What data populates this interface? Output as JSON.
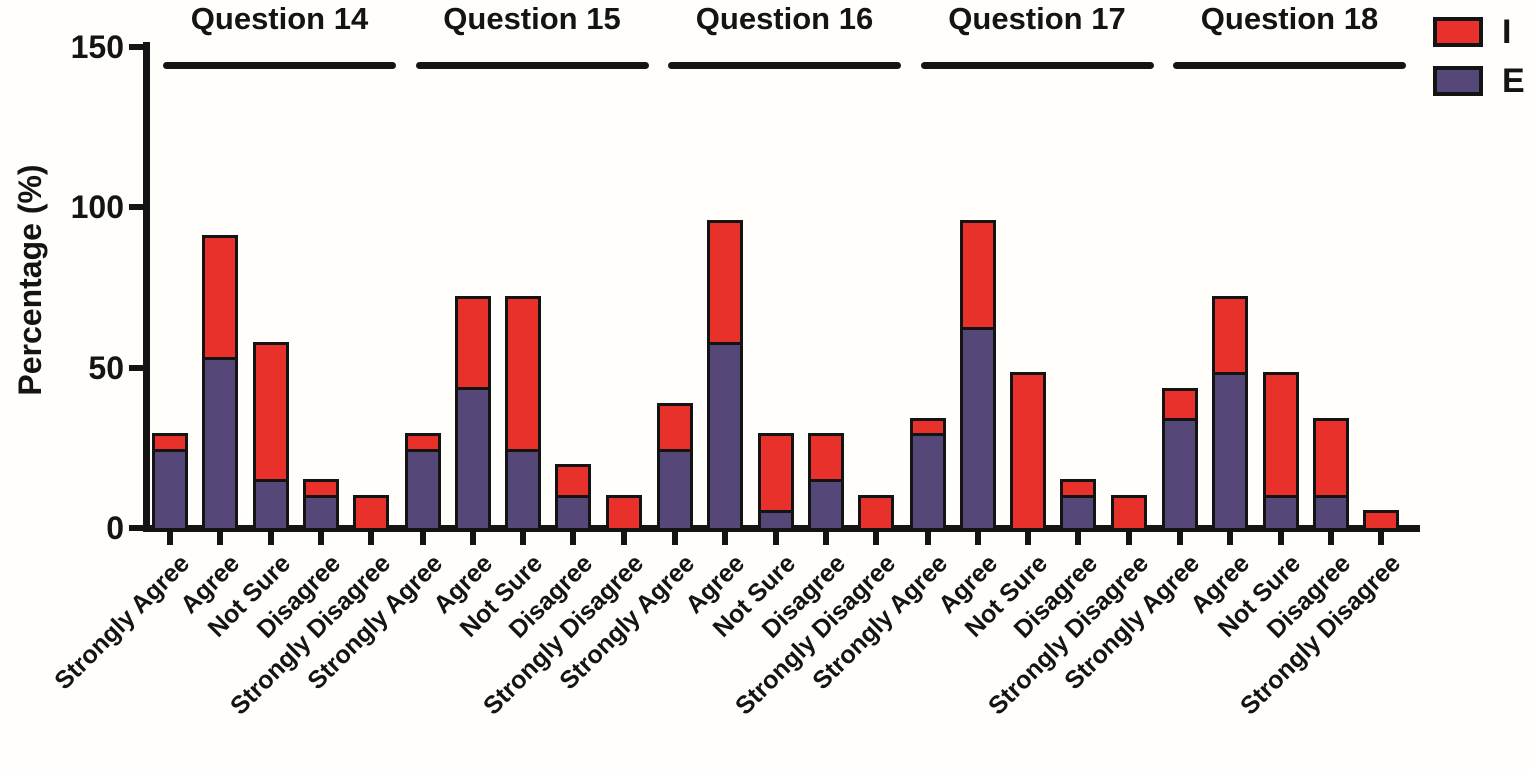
{
  "figure": {
    "background": "#fffefb",
    "ink": "#141414"
  },
  "legend": {
    "position": "top-right",
    "items": [
      {
        "label": "I",
        "color": "#e8312b"
      },
      {
        "label": "E",
        "color": "#564779"
      }
    ]
  },
  "chart_data": {
    "type": "bar",
    "stacked": true,
    "title": "",
    "xlabel": "",
    "ylabel": "Percentage (%)",
    "ylim": [
      0,
      150
    ],
    "yticks": [
      0,
      50,
      100,
      150
    ],
    "ytick_labels": [
      "0",
      "50",
      "100",
      "150"
    ],
    "grid": false,
    "legend_position": "top-right",
    "groups": [
      "Question 14",
      "Question 15",
      "Question 16",
      "Question 17",
      "Question 18"
    ],
    "categories": [
      "Strongly Agree",
      "Agree",
      "Not Sure",
      "Disagree",
      "Strongly Disagree"
    ],
    "stack_order_bottom_to_top": [
      "E",
      "I"
    ],
    "series": [
      {
        "name": "I",
        "color": "#e8312b",
        "values": [
          [
            4.8,
            38.1,
            42.9,
            4.8,
            9.5
          ],
          [
            4.8,
            28.6,
            47.6,
            9.5,
            9.5
          ],
          [
            14.3,
            38.1,
            23.8,
            14.3,
            9.5
          ],
          [
            4.8,
            33.3,
            47.6,
            4.8,
            9.5
          ],
          [
            9.5,
            23.8,
            38.1,
            23.8,
            4.8
          ]
        ]
      },
      {
        "name": "E",
        "color": "#564779",
        "values": [
          [
            23.8,
            52.4,
            14.3,
            9.5,
            0
          ],
          [
            23.8,
            42.9,
            23.8,
            9.5,
            0
          ],
          [
            23.8,
            57.1,
            4.8,
            14.3,
            0
          ],
          [
            28.6,
            61.9,
            0,
            9.5,
            0
          ],
          [
            33.3,
            47.6,
            9.5,
            9.5,
            0
          ]
        ]
      }
    ]
  }
}
